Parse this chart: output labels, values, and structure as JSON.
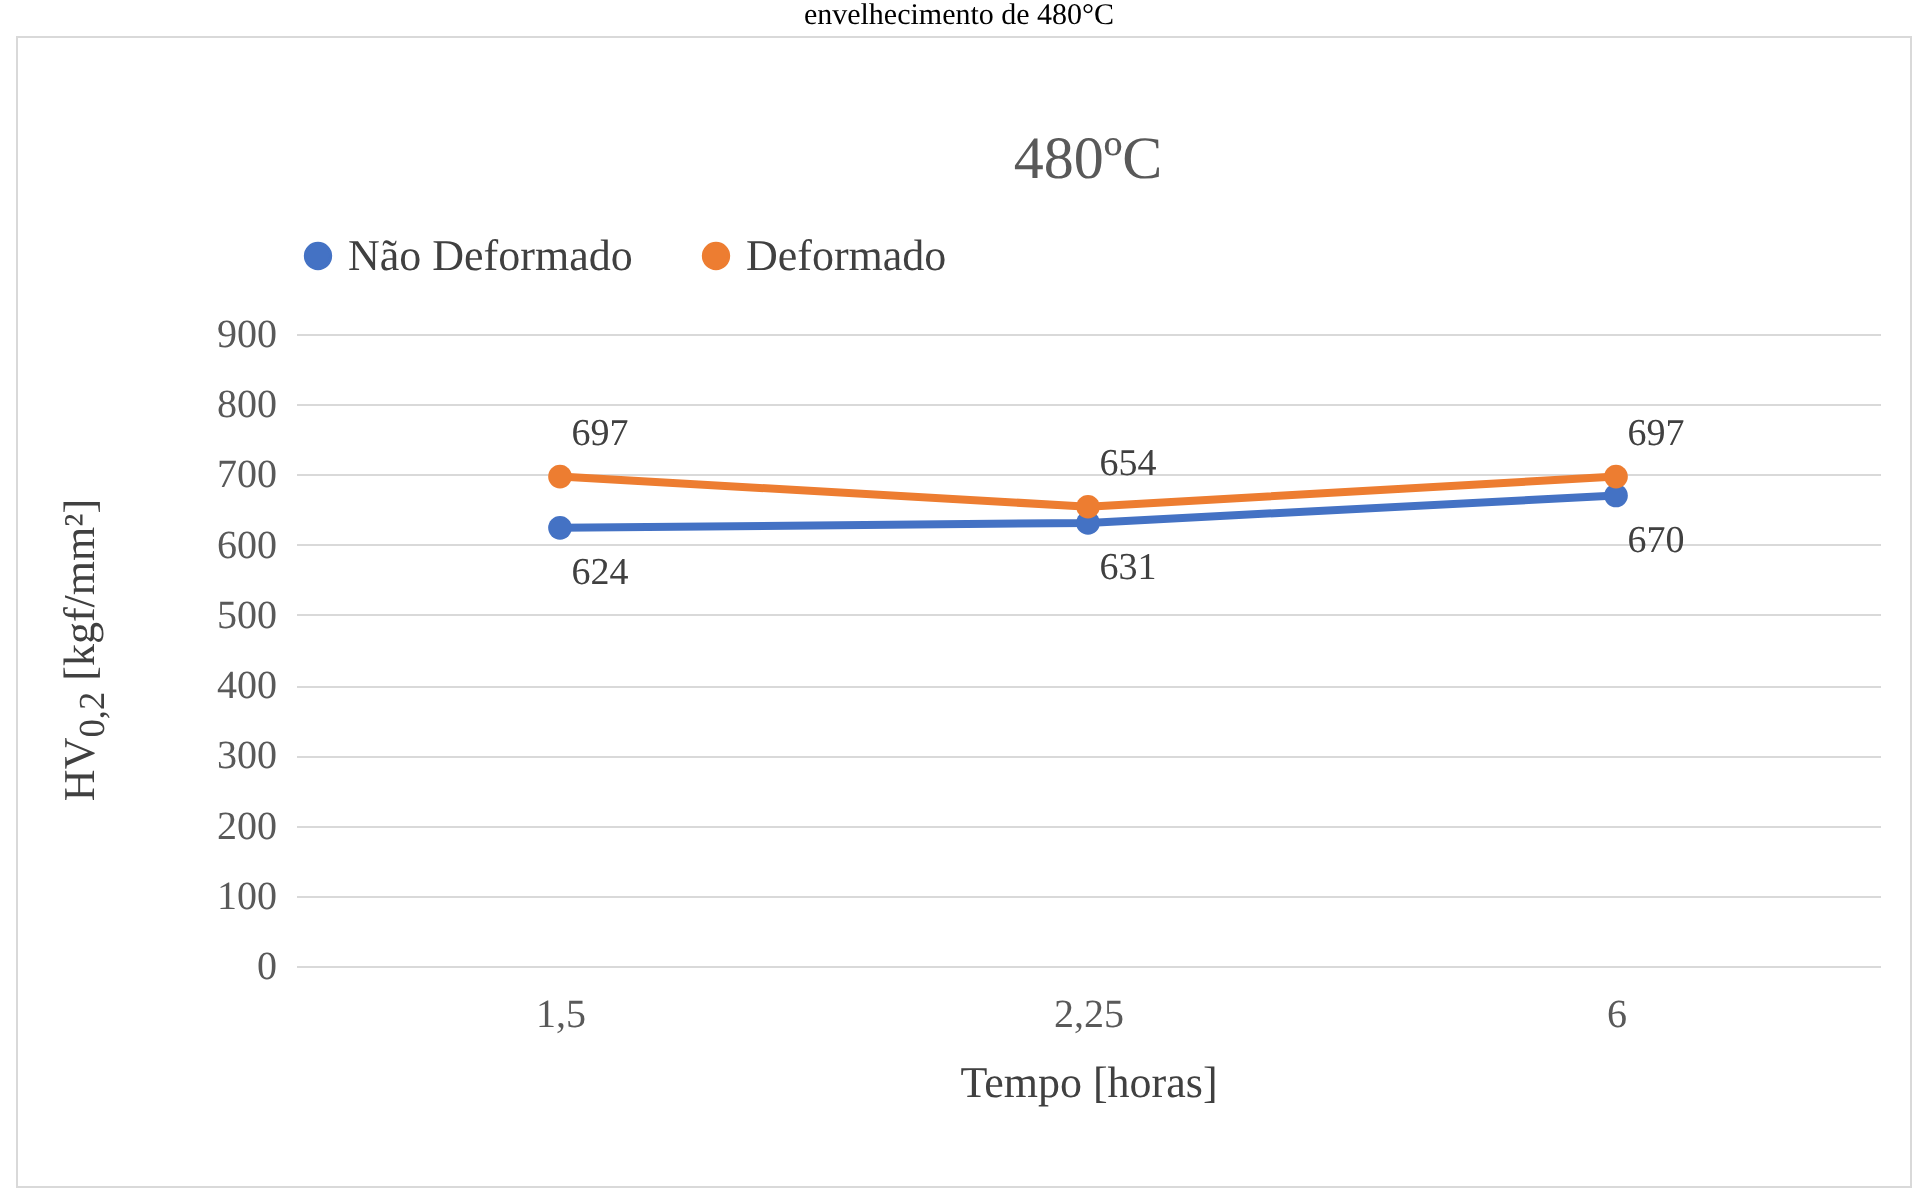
{
  "chart_data": {
    "type": "line",
    "title": "480ºC",
    "xlabel": "Tempo [horas]",
    "ylabel": "HV$_{0,2}$ [kgf/mm²]",
    "annotations": [
      "envelhecimento de 480°C"
    ],
    "categories": [
      "1,5",
      "2,25",
      "6"
    ],
    "series": [
      {
        "name": "Não Deformado",
        "color": "#4472c4",
        "values": [
          624,
          631,
          670
        ]
      },
      {
        "name": "Deformado",
        "color": "#ed7d31",
        "values": [
          697,
          654,
          697
        ]
      }
    ],
    "ylim": [
      0,
      900
    ],
    "yticks": [
      0,
      100,
      200,
      300,
      400,
      500,
      600,
      700,
      800,
      900
    ],
    "grid": "y",
    "legend": "top",
    "marker": "circle",
    "data_labels": true
  }
}
